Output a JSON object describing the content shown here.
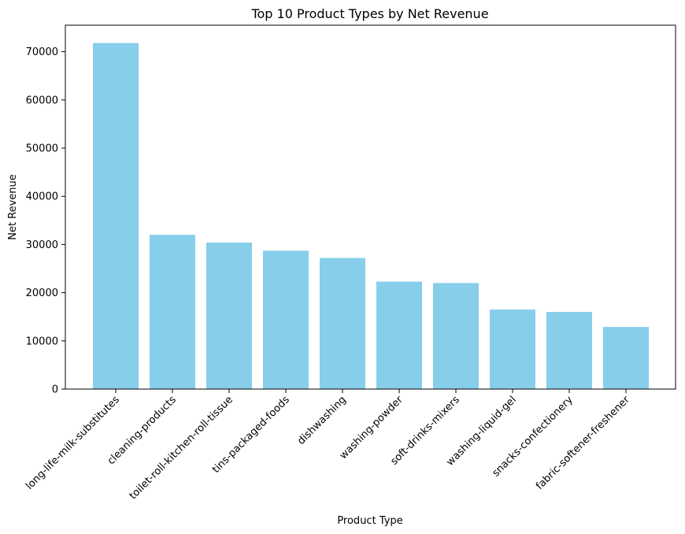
{
  "chart_data": {
    "type": "bar",
    "title": "Top 10 Product Types by Net Revenue",
    "xlabel": "Product Type",
    "ylabel": "Net Revenue",
    "categories": [
      "long-life-milk-substitutes",
      "cleaning-products",
      "toilet-roll-kitchen-roll-tissue",
      "tins-packaged-foods",
      "dishwashing",
      "washing-powder",
      "soft-drinks-mixers",
      "washing-liquid-gel",
      "snacks-confectionery",
      "fabric-softener-freshener"
    ],
    "values": [
      71800,
      32000,
      30400,
      28700,
      27200,
      22300,
      22000,
      16500,
      16000,
      12900
    ],
    "ylim": [
      0,
      75500
    ],
    "yticks": [
      0,
      10000,
      20000,
      30000,
      40000,
      50000,
      60000,
      70000
    ],
    "bar_color": "#87ceeb",
    "grid": false,
    "legend": "none"
  }
}
